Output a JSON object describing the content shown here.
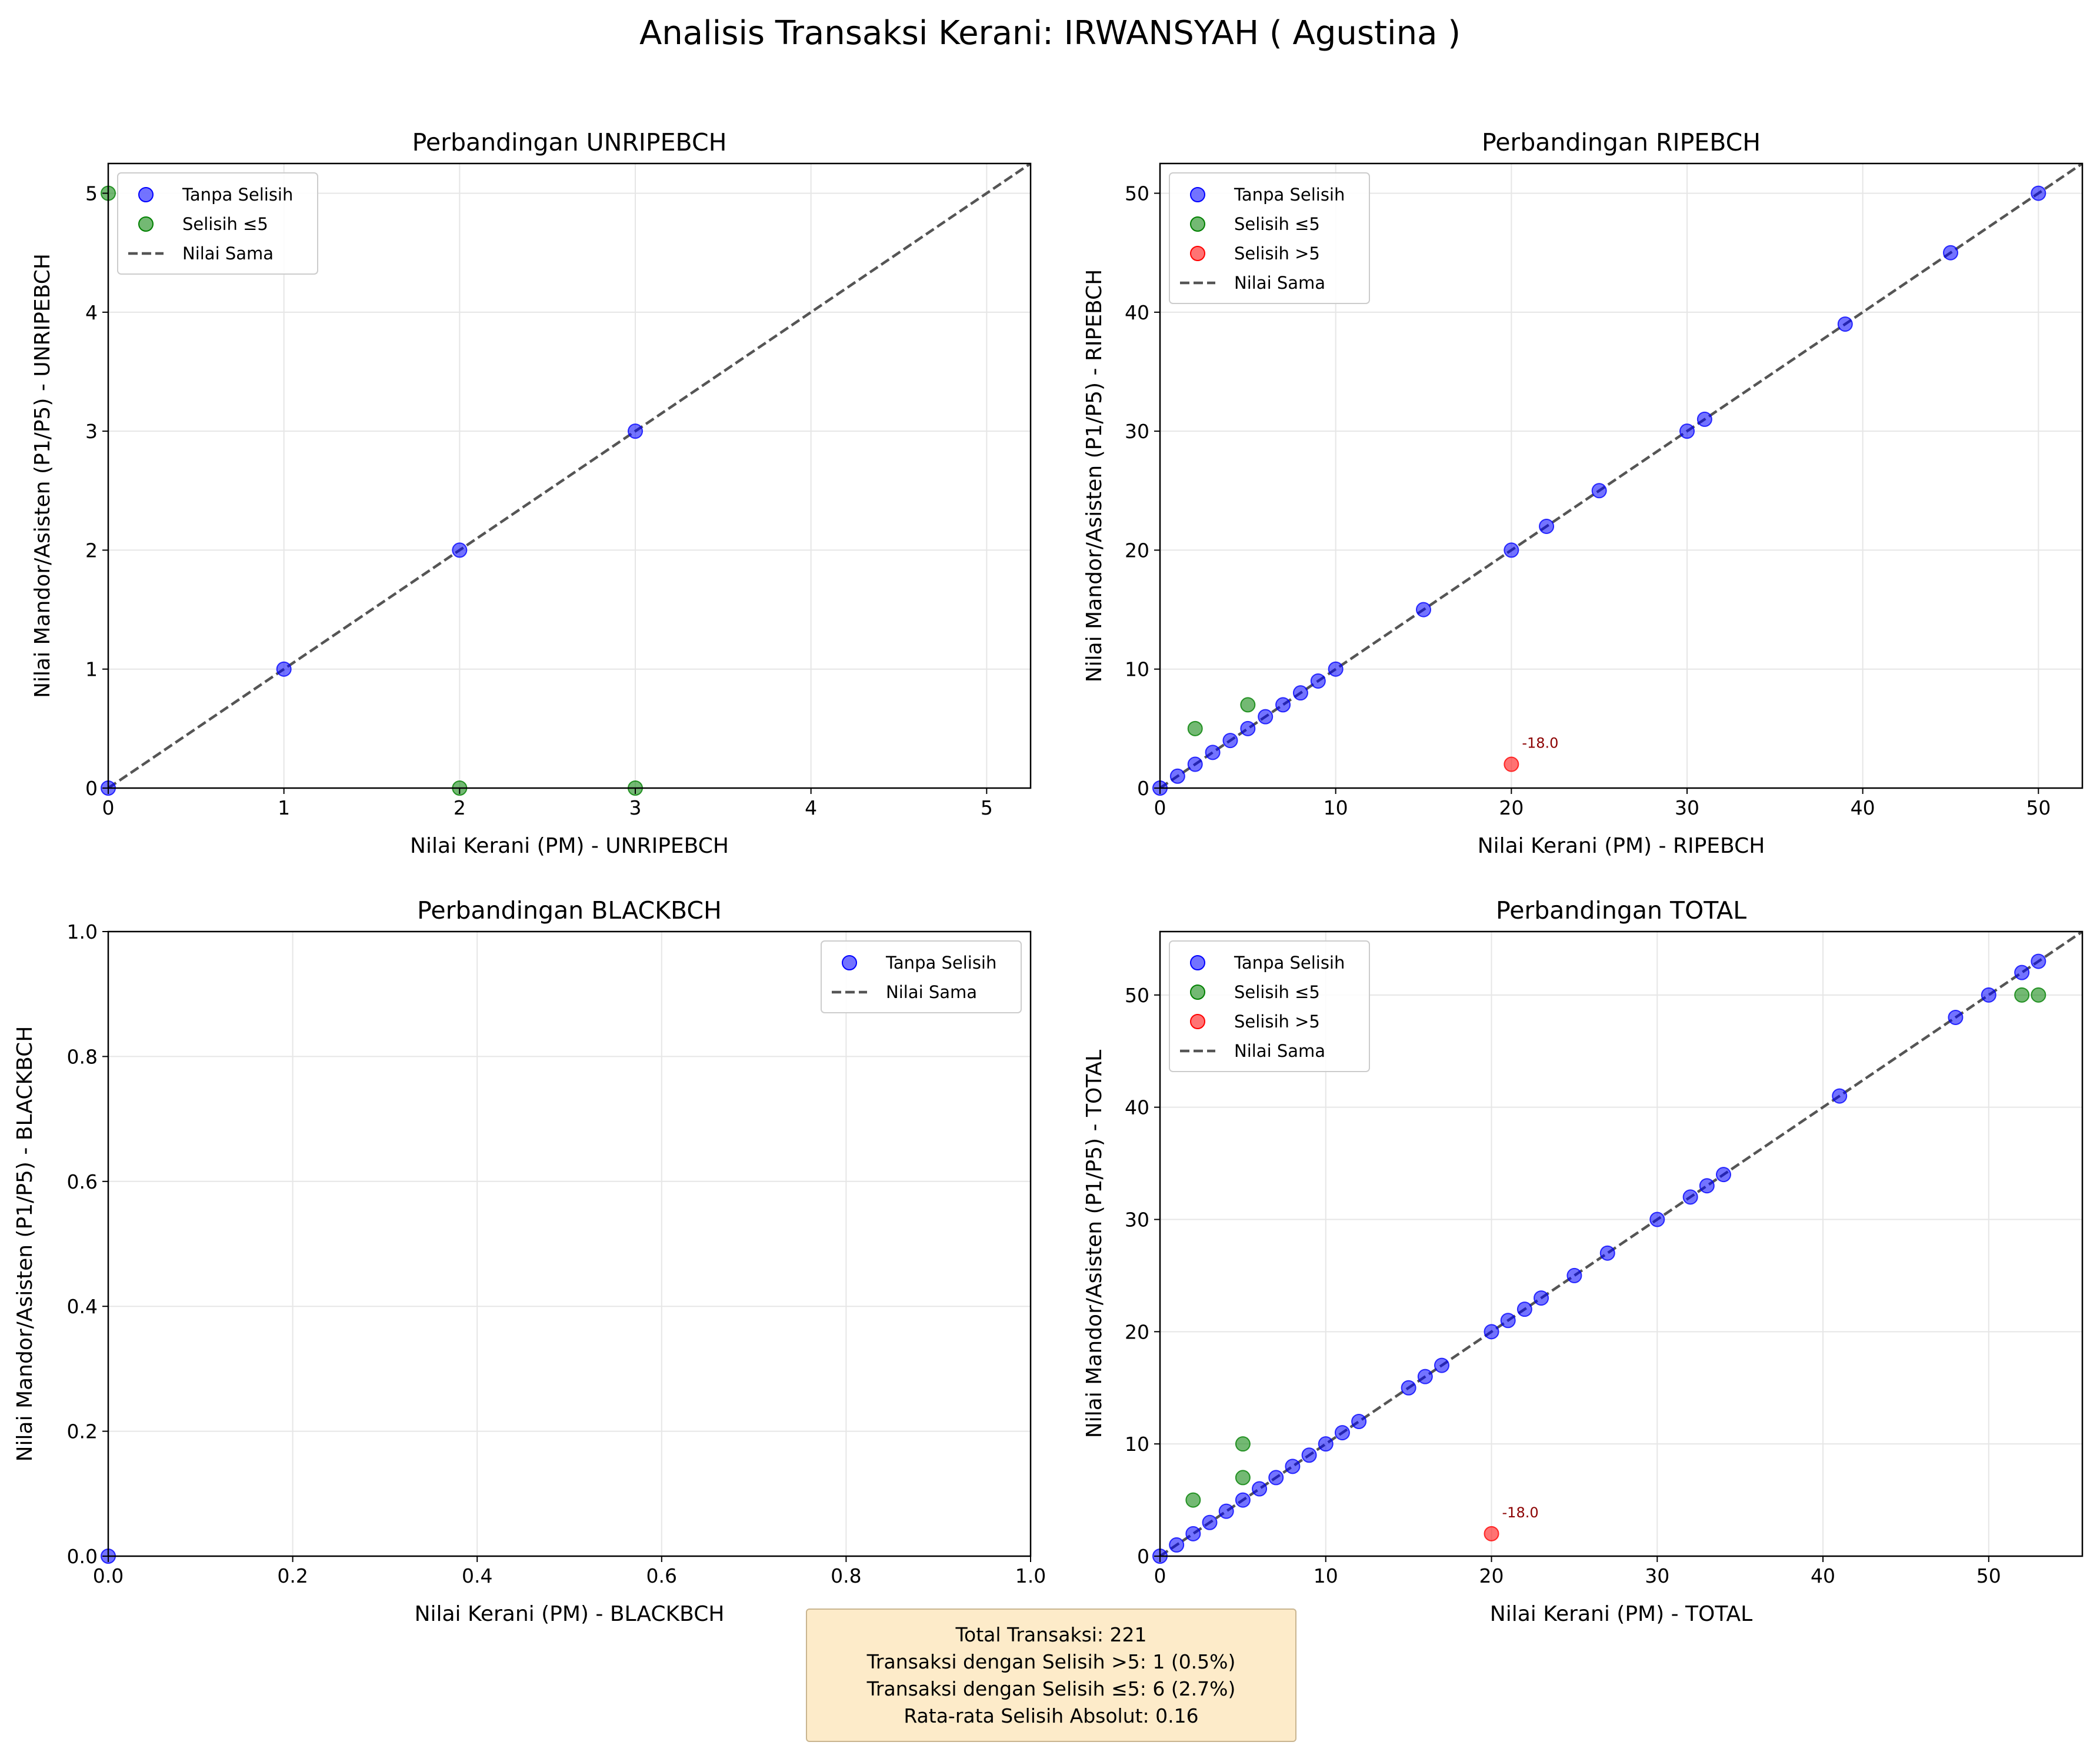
{
  "figure_title": "Analisis Transaksi Kerani: IRWANSYAH ( Agustina )",
  "summary": {
    "line1": "Total Transaksi: 221",
    "line2": "Transaksi dengan Selisih >5: 1 (0.5%)",
    "line3": "Transaksi dengan Selisih ≤5: 6 (2.7%)",
    "line4": "Rata-rata Selisih Absolut: 0.16"
  },
  "colors": {
    "tanpa": "#0000ff",
    "le5": "#008000",
    "gt5": "#ff0000",
    "line": "#555555",
    "annotation": "#8b0000"
  },
  "chart_data": [
    {
      "type": "scatter",
      "title": "Perbandingan UNRIPEBCH",
      "xlabel": "Nilai Kerani (PM) - UNRIPEBCH",
      "ylabel": "Nilai Mandor/Asisten (P1/P5) - UNRIPEBCH",
      "xlim": [
        0,
        5.25
      ],
      "ylim": [
        0,
        5.25
      ],
      "xticks": [
        0,
        1,
        2,
        3,
        4,
        5
      ],
      "yticks": [
        0,
        1,
        2,
        3,
        4,
        5
      ],
      "tick_labels_x": [
        "0",
        "1",
        "2",
        "3",
        "4",
        "5"
      ],
      "tick_labels_y": [
        "0",
        "1",
        "2",
        "3",
        "4",
        "5"
      ],
      "grid": true,
      "legend_position": "upper-left",
      "legend": [
        "Tanpa Selisih",
        "Selisih ≤5",
        "Nilai Sama"
      ],
      "series": [
        {
          "name": "Tanpa Selisih",
          "color_key": "tanpa",
          "points": [
            [
              0,
              0
            ],
            [
              1,
              1
            ],
            [
              2,
              2
            ],
            [
              3,
              3
            ]
          ]
        },
        {
          "name": "Selisih ≤5",
          "color_key": "le5",
          "points": [
            [
              0,
              5
            ],
            [
              2,
              0
            ],
            [
              3,
              0
            ]
          ]
        }
      ],
      "annotations": []
    },
    {
      "type": "scatter",
      "title": "Perbandingan RIPEBCH",
      "xlabel": "Nilai Kerani (PM) - RIPEBCH",
      "ylabel": "Nilai Mandor/Asisten (P1/P5) - RIPEBCH",
      "xlim": [
        0,
        52.5
      ],
      "ylim": [
        0,
        52.5
      ],
      "xticks": [
        0,
        10,
        20,
        30,
        40,
        50
      ],
      "yticks": [
        0,
        10,
        20,
        30,
        40,
        50
      ],
      "tick_labels_x": [
        "0",
        "10",
        "20",
        "30",
        "40",
        "50"
      ],
      "tick_labels_y": [
        "0",
        "10",
        "20",
        "30",
        "40",
        "50"
      ],
      "grid": true,
      "legend_position": "upper-left",
      "legend": [
        "Tanpa Selisih",
        "Selisih ≤5",
        "Selisih >5",
        "Nilai Sama"
      ],
      "series": [
        {
          "name": "Tanpa Selisih",
          "color_key": "tanpa",
          "points": [
            [
              0,
              0
            ],
            [
              1,
              1
            ],
            [
              2,
              2
            ],
            [
              3,
              3
            ],
            [
              4,
              4
            ],
            [
              5,
              5
            ],
            [
              6,
              6
            ],
            [
              7,
              7
            ],
            [
              8,
              8
            ],
            [
              9,
              9
            ],
            [
              10,
              10
            ],
            [
              15,
              15
            ],
            [
              20,
              20
            ],
            [
              22,
              22
            ],
            [
              25,
              25
            ],
            [
              30,
              30
            ],
            [
              31,
              31
            ],
            [
              39,
              39
            ],
            [
              45,
              45
            ],
            [
              50,
              50
            ]
          ]
        },
        {
          "name": "Selisih ≤5",
          "color_key": "le5",
          "points": [
            [
              2,
              5
            ],
            [
              5,
              7
            ]
          ]
        },
        {
          "name": "Selisih >5",
          "color_key": "gt5",
          "points": [
            [
              20,
              2
            ]
          ]
        }
      ],
      "annotations": [
        {
          "x": 20,
          "y": 2,
          "text": "-18.0"
        }
      ]
    },
    {
      "type": "scatter",
      "title": "Perbandingan BLACKBCH",
      "xlabel": "Nilai Kerani (PM) - BLACKBCH",
      "ylabel": "Nilai Mandor/Asisten (P1/P5) - BLACKBCH",
      "xlim": [
        0,
        1
      ],
      "ylim": [
        0,
        1
      ],
      "xticks": [
        0,
        0.2,
        0.4,
        0.6,
        0.8,
        1.0
      ],
      "yticks": [
        0,
        0.2,
        0.4,
        0.6,
        0.8,
        1.0
      ],
      "tick_labels_x": [
        "0.0",
        "0.2",
        "0.4",
        "0.6",
        "0.8",
        "1.0"
      ],
      "tick_labels_y": [
        "0.0",
        "0.2",
        "0.4",
        "0.6",
        "0.8",
        "1.0"
      ],
      "grid": true,
      "legend_position": "upper-right",
      "legend": [
        "Tanpa Selisih",
        "Nilai Sama"
      ],
      "series": [
        {
          "name": "Tanpa Selisih",
          "color_key": "tanpa",
          "points": [
            [
              0,
              0
            ]
          ]
        }
      ],
      "annotations": []
    },
    {
      "type": "scatter",
      "title": "Perbandingan TOTAL",
      "xlabel": "Nilai Kerani (PM) - TOTAL",
      "ylabel": "Nilai Mandor/Asisten (P1/P5) - TOTAL",
      "xlim": [
        0,
        55.65
      ],
      "ylim": [
        0,
        55.65
      ],
      "xticks": [
        0,
        10,
        20,
        30,
        40,
        50
      ],
      "yticks": [
        0,
        10,
        20,
        30,
        40,
        50
      ],
      "tick_labels_x": [
        "0",
        "10",
        "20",
        "30",
        "40",
        "50"
      ],
      "tick_labels_y": [
        "0",
        "10",
        "20",
        "30",
        "40",
        "50"
      ],
      "grid": true,
      "legend_position": "upper-left",
      "legend": [
        "Tanpa Selisih",
        "Selisih ≤5",
        "Selisih >5",
        "Nilai Sama"
      ],
      "series": [
        {
          "name": "Tanpa Selisih",
          "color_key": "tanpa",
          "points": [
            [
              0,
              0
            ],
            [
              1,
              1
            ],
            [
              2,
              2
            ],
            [
              3,
              3
            ],
            [
              4,
              4
            ],
            [
              5,
              5
            ],
            [
              6,
              6
            ],
            [
              7,
              7
            ],
            [
              8,
              8
            ],
            [
              9,
              9
            ],
            [
              10,
              10
            ],
            [
              11,
              11
            ],
            [
              12,
              12
            ],
            [
              15,
              15
            ],
            [
              16,
              16
            ],
            [
              17,
              17
            ],
            [
              20,
              20
            ],
            [
              21,
              21
            ],
            [
              22,
              22
            ],
            [
              23,
              23
            ],
            [
              25,
              25
            ],
            [
              27,
              27
            ],
            [
              30,
              30
            ],
            [
              32,
              32
            ],
            [
              33,
              33
            ],
            [
              34,
              34
            ],
            [
              41,
              41
            ],
            [
              48,
              48
            ],
            [
              50,
              50
            ],
            [
              52,
              52
            ],
            [
              53,
              53
            ]
          ]
        },
        {
          "name": "Selisih ≤5",
          "color_key": "le5",
          "points": [
            [
              2,
              5
            ],
            [
              5,
              10
            ],
            [
              5,
              7
            ],
            [
              52,
              50
            ],
            [
              53,
              50
            ]
          ]
        },
        {
          "name": "Selisih >5",
          "color_key": "gt5",
          "points": [
            [
              20,
              2
            ]
          ]
        }
      ],
      "annotations": [
        {
          "x": 20,
          "y": 2,
          "text": "-18.0"
        }
      ]
    }
  ]
}
